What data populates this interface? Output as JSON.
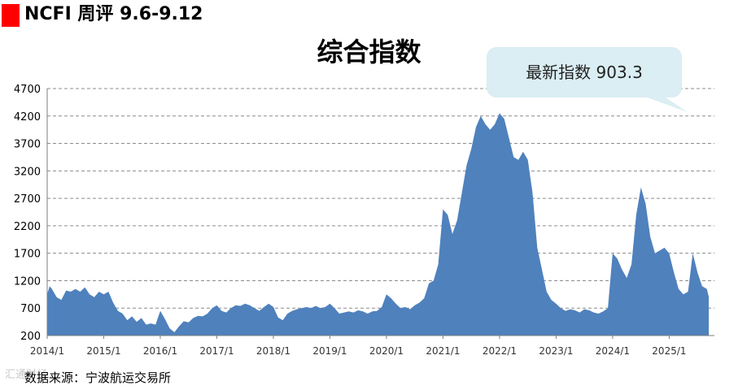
{
  "header": {
    "title": "NCFI 周评 9.6-9.12",
    "accent_color": "#ff0000"
  },
  "chart_data": {
    "type": "area",
    "title": "综合指数",
    "callout": "最新指数 903.3",
    "source": "数据来源：宁波航运交易所",
    "series_color": "#4f81bd",
    "ylim": [
      200,
      4700
    ],
    "yticks": [
      200,
      700,
      1200,
      1700,
      2200,
      2700,
      3200,
      3700,
      4200,
      4700
    ],
    "xlim": [
      "2014/1",
      "2025/10"
    ],
    "xticks": [
      "2014/1",
      "2015/1",
      "2016/1",
      "2017/1",
      "2018/1",
      "2019/1",
      "2020/1",
      "2021/1",
      "2022/1",
      "2023/1",
      "2024/1",
      "2025/1"
    ],
    "grid": "horizontal-dashed",
    "series": [
      {
        "points": [
          [
            "2014/1",
            950
          ],
          [
            "2014/1.5",
            1100
          ],
          [
            "2014/2",
            1050
          ],
          [
            "2014/3",
            900
          ],
          [
            "2014/4",
            850
          ],
          [
            "2014/5",
            1020
          ],
          [
            "2014/6",
            1000
          ],
          [
            "2014/7",
            1050
          ],
          [
            "2014/8",
            1000
          ],
          [
            "2014/9",
            1080
          ],
          [
            "2014/10",
            950
          ],
          [
            "2014/11",
            900
          ],
          [
            "2014/12",
            1000
          ],
          [
            "2015/1",
            950
          ],
          [
            "2015/2",
            1000
          ],
          [
            "2015/3",
            800
          ],
          [
            "2015/4",
            650
          ],
          [
            "2015/5",
            600
          ],
          [
            "2015/6",
            480
          ],
          [
            "2015/7",
            550
          ],
          [
            "2015/8",
            450
          ],
          [
            "2015/9",
            520
          ],
          [
            "2015/10",
            400
          ],
          [
            "2015/11",
            420
          ],
          [
            "2015/12",
            400
          ],
          [
            "2016/1",
            650
          ],
          [
            "2016/2",
            500
          ],
          [
            "2016/3",
            330
          ],
          [
            "2016/4",
            260
          ],
          [
            "2016/5",
            370
          ],
          [
            "2016/6",
            460
          ],
          [
            "2016/7",
            440
          ],
          [
            "2016/8",
            520
          ],
          [
            "2016/9",
            560
          ],
          [
            "2016/10",
            550
          ],
          [
            "2016/11",
            600
          ],
          [
            "2016/12",
            700
          ],
          [
            "2017/1",
            750
          ],
          [
            "2017/2",
            650
          ],
          [
            "2017/3",
            620
          ],
          [
            "2017/4",
            700
          ],
          [
            "2017/5",
            750
          ],
          [
            "2017/6",
            740
          ],
          [
            "2017/7",
            780
          ],
          [
            "2017/8",
            750
          ],
          [
            "2017/9",
            700
          ],
          [
            "2017/10",
            650
          ],
          [
            "2017/11",
            720
          ],
          [
            "2017/12",
            780
          ],
          [
            "2018/1",
            720
          ],
          [
            "2018/2",
            530
          ],
          [
            "2018/3",
            480
          ],
          [
            "2018/4",
            600
          ],
          [
            "2018/5",
            650
          ],
          [
            "2018/6",
            680
          ],
          [
            "2018/7",
            700
          ],
          [
            "2018/8",
            720
          ],
          [
            "2018/9",
            700
          ],
          [
            "2018/10",
            740
          ],
          [
            "2018/11",
            700
          ],
          [
            "2018/12",
            720
          ],
          [
            "2019/1",
            780
          ],
          [
            "2019/2",
            700
          ],
          [
            "2019/3",
            600
          ],
          [
            "2019/4",
            620
          ],
          [
            "2019/5",
            640
          ],
          [
            "2019/6",
            620
          ],
          [
            "2019/7",
            660
          ],
          [
            "2019/8",
            640
          ],
          [
            "2019/9",
            600
          ],
          [
            "2019/10",
            640
          ],
          [
            "2019/11",
            650
          ],
          [
            "2019/12",
            720
          ],
          [
            "2020/1",
            950
          ],
          [
            "2020/2",
            880
          ],
          [
            "2020/3",
            780
          ],
          [
            "2020/4",
            700
          ],
          [
            "2020/5",
            720
          ],
          [
            "2020/6",
            680
          ],
          [
            "2020/7",
            750
          ],
          [
            "2020/8",
            800
          ],
          [
            "2020/9",
            880
          ],
          [
            "2020/10",
            1150
          ],
          [
            "2020/11",
            1200
          ],
          [
            "2020/12",
            1500
          ],
          [
            "2021/1",
            2500
          ],
          [
            "2021/2",
            2400
          ],
          [
            "2021/3",
            2050
          ],
          [
            "2021/4",
            2300
          ],
          [
            "2021/5",
            2800
          ],
          [
            "2021/6",
            3300
          ],
          [
            "2021/7",
            3600
          ],
          [
            "2021/8",
            4000
          ],
          [
            "2021/9",
            4200
          ],
          [
            "2021/10",
            4050
          ],
          [
            "2021/11",
            3950
          ],
          [
            "2021/12",
            4050
          ],
          [
            "2022/1",
            4250
          ],
          [
            "2022/2",
            4150
          ],
          [
            "2022/3",
            3800
          ],
          [
            "2022/4",
            3450
          ],
          [
            "2022/5",
            3400
          ],
          [
            "2022/6",
            3550
          ],
          [
            "2022/7",
            3400
          ],
          [
            "2022/8",
            2800
          ],
          [
            "2022/9",
            1800
          ],
          [
            "2022/10",
            1400
          ],
          [
            "2022/11",
            1000
          ],
          [
            "2022/12",
            850
          ],
          [
            "2023/1",
            780
          ],
          [
            "2023/2",
            700
          ],
          [
            "2023/3",
            650
          ],
          [
            "2023/4",
            680
          ],
          [
            "2023/5",
            660
          ],
          [
            "2023/6",
            620
          ],
          [
            "2023/7",
            680
          ],
          [
            "2023/8",
            660
          ],
          [
            "2023/9",
            620
          ],
          [
            "2023/10",
            600
          ],
          [
            "2023/11",
            640
          ],
          [
            "2023/12",
            700
          ],
          [
            "2024/1",
            1700
          ],
          [
            "2024/2",
            1600
          ],
          [
            "2024/3",
            1400
          ],
          [
            "2024/4",
            1250
          ],
          [
            "2024/5",
            1500
          ],
          [
            "2024/6",
            2400
          ],
          [
            "2024/7",
            2900
          ],
          [
            "2024/8",
            2600
          ],
          [
            "2024/9",
            2000
          ],
          [
            "2024/10",
            1700
          ],
          [
            "2024/11",
            1750
          ],
          [
            "2024/12",
            1800
          ],
          [
            "2025/1",
            1700
          ],
          [
            "2025/2",
            1350
          ],
          [
            "2025/3",
            1050
          ],
          [
            "2025/4",
            950
          ],
          [
            "2025/5",
            1000
          ],
          [
            "2025/6",
            1700
          ],
          [
            "2025/7",
            1350
          ],
          [
            "2025/8",
            1100
          ],
          [
            "2025/9",
            1050
          ],
          [
            "2025/9.4",
            903.3
          ]
        ]
      }
    ]
  },
  "watermark": "汇通财经"
}
